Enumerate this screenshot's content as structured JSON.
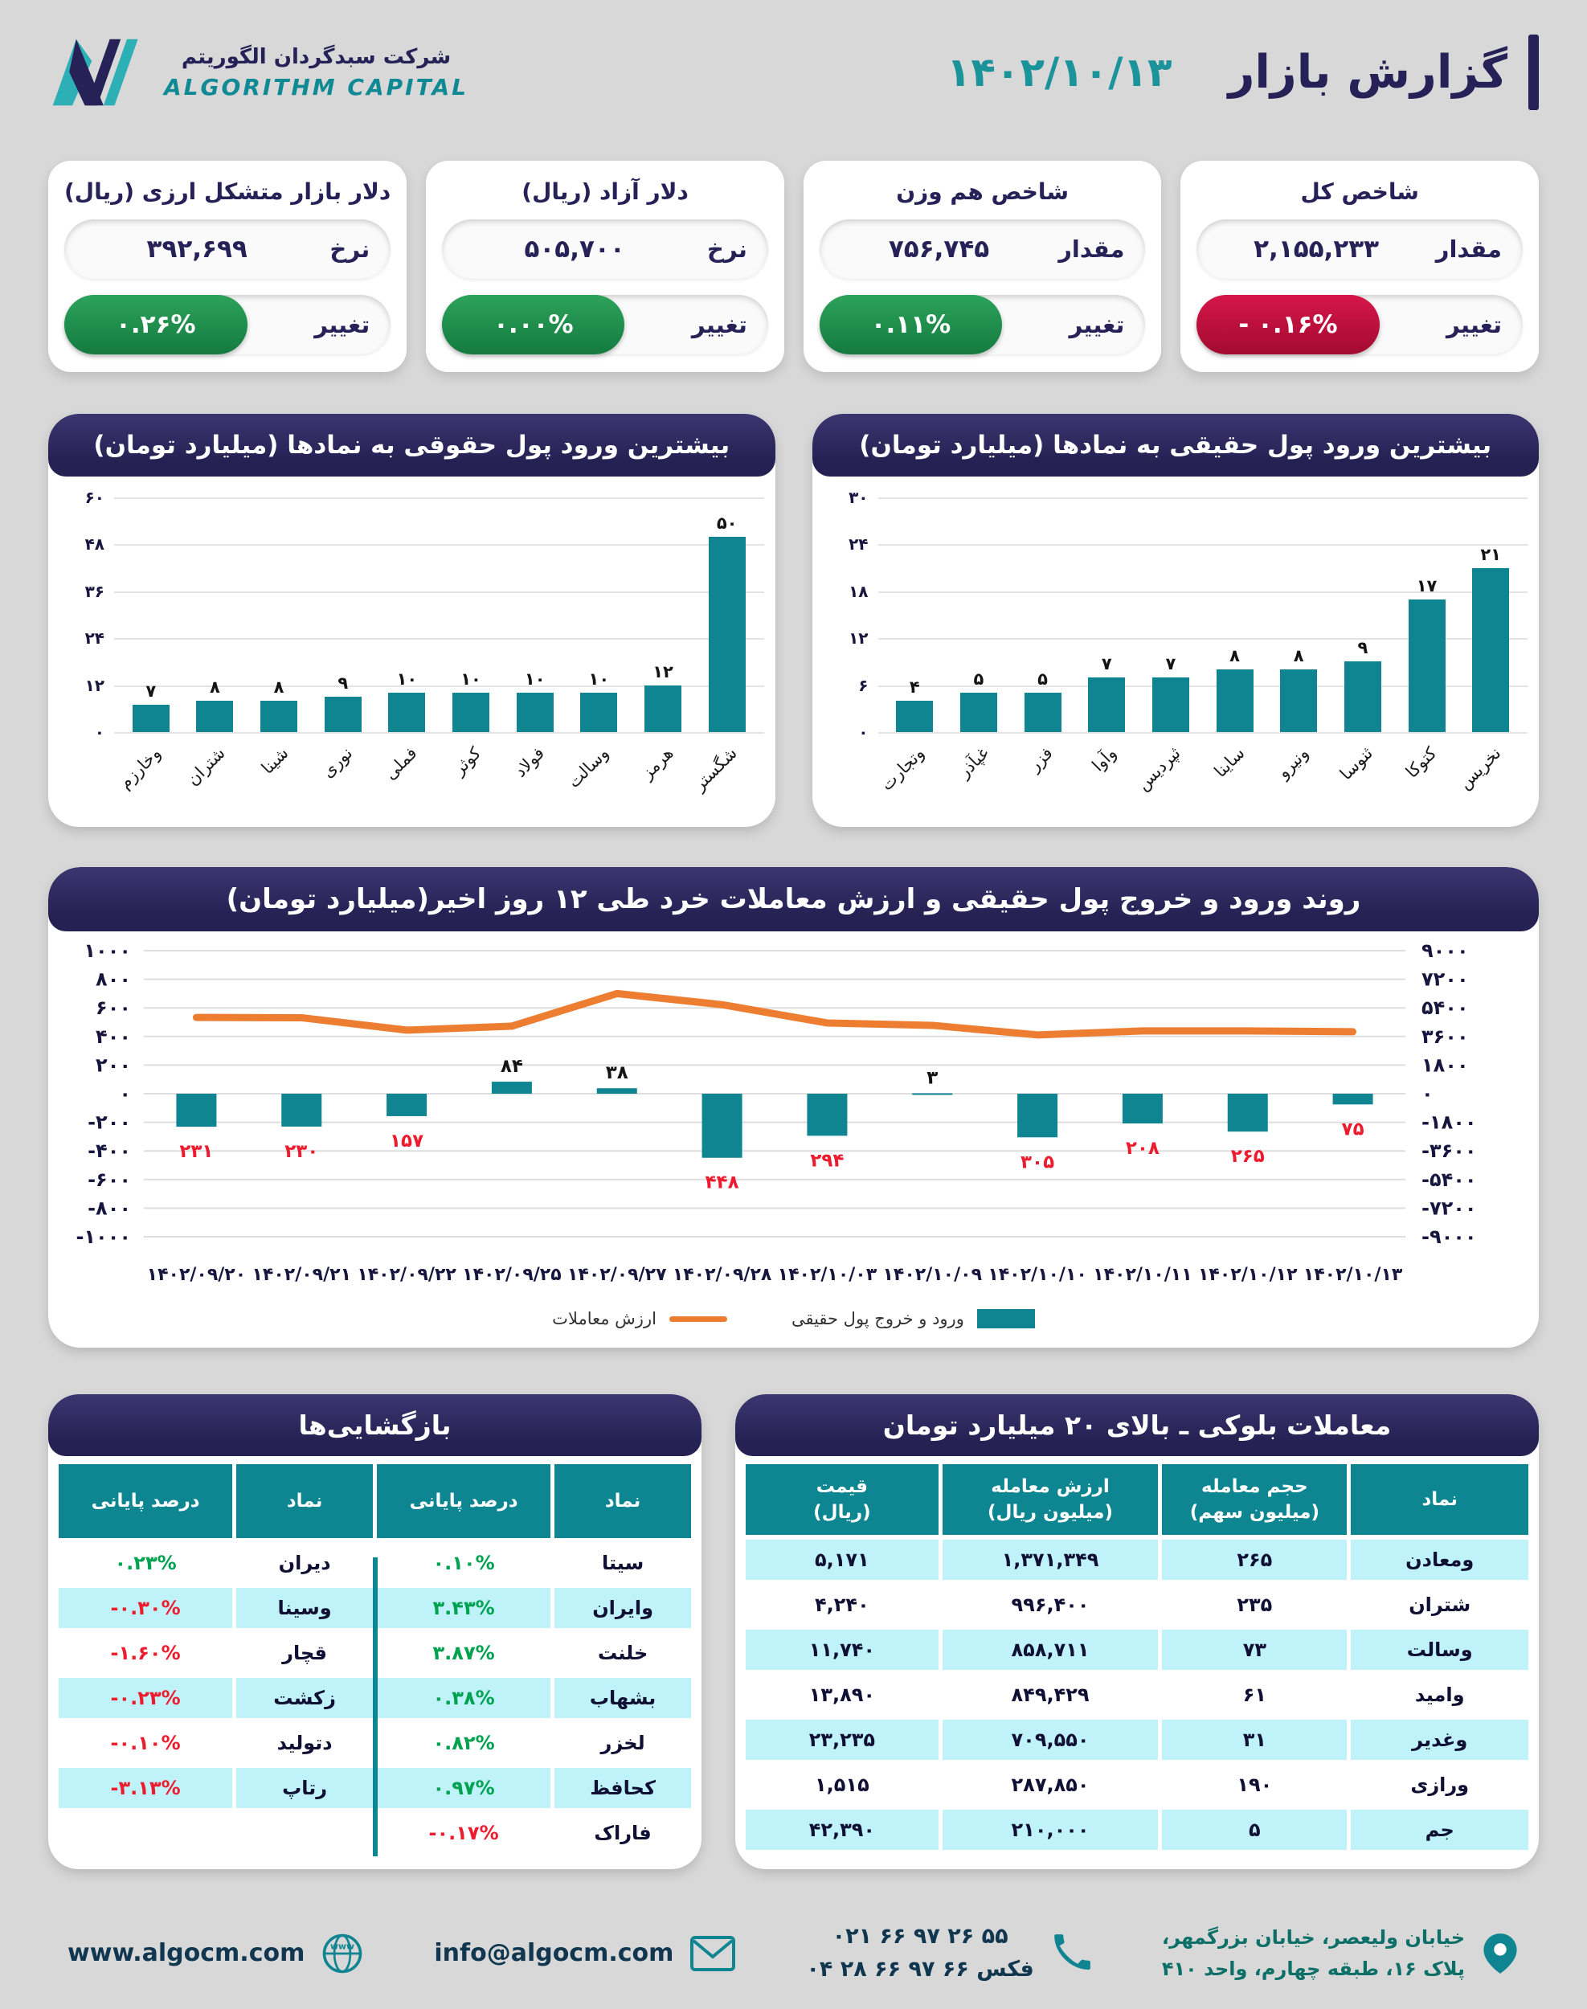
{
  "header": {
    "title": "گزارش بازار",
    "date": "۱۴۰۲/۱۰/۱۳",
    "logo_fa": "شرکت سبدگردان الگوریتم",
    "logo_en": "ALGORITHM CAPITAL"
  },
  "colors": {
    "navy": "#262156",
    "teal": "#0e8591",
    "green": "#1e8f4a",
    "red": "#c01038",
    "orange": "#ed7d31",
    "row_cyan": "#bff3f9",
    "neg_text": "#ec1c2e",
    "pos_text": "#00a14f"
  },
  "stat_cards": [
    {
      "title": "شاخص کل",
      "value_label": "مقدار",
      "value": "۲,۱۵۵,۲۳۳",
      "change_label": "تغییر",
      "change": "- ۰.۱۶%",
      "direction": "down"
    },
    {
      "title": "شاخص هم وزن",
      "value_label": "مقدار",
      "value": "۷۵۶,۷۴۵",
      "change_label": "تغییر",
      "change": "۰.۱۱%",
      "direction": "up"
    },
    {
      "title": "دلار آزاد (ریال)",
      "value_label": "نرخ",
      "value": "۵۰۵,۷۰۰",
      "change_label": "تغییر",
      "change": "۰.۰۰%",
      "direction": "up"
    },
    {
      "title": "دلار بازار متشکل ارزی (ریال)",
      "value_label": "نرخ",
      "value": "۳۹۲,۶۹۹",
      "change_label": "تغییر",
      "change": "۰.۲۶%",
      "direction": "up"
    }
  ],
  "chart_data": [
    {
      "type": "bar",
      "title": "بیشترین ورود پول حقیقی به نمادها (میلیارد تومان)",
      "categories": [
        "نخریس",
        "کتوکا",
        "ثنوسا",
        "ونیرو",
        "ساینا",
        "ثپردیس",
        "وآوا",
        "فزر",
        "غپآذر",
        "وتجارت"
      ],
      "values": [
        21,
        17,
        9,
        8,
        8,
        7,
        7,
        5,
        5,
        4
      ],
      "value_labels": [
        "۲۱",
        "۱۷",
        "۹",
        "۸",
        "۸",
        "۷",
        "۷",
        "۵",
        "۵",
        "۴"
      ],
      "ymax": 30,
      "yticks": [
        "۰",
        "۶",
        "۱۲",
        "۱۸",
        "۲۴",
        "۳۰"
      ],
      "bar_color": "#0e8591",
      "grid": true,
      "rtl": true
    },
    {
      "type": "bar",
      "title": "بیشترین ورود پول حقوقی به نمادها (میلیارد تومان)",
      "categories": [
        "شگستر",
        "هرمز",
        "وسالت",
        "فولاد",
        "کوثر",
        "فملی",
        "نوری",
        "شینا",
        "شتران",
        "وخارزم"
      ],
      "values": [
        50,
        12,
        10,
        10,
        10,
        10,
        9,
        8,
        8,
        7
      ],
      "value_labels": [
        "۵۰",
        "۱۲",
        "۱۰",
        "۱۰",
        "۱۰",
        "۱۰",
        "۹",
        "۸",
        "۸",
        "۷"
      ],
      "ymax": 60,
      "yticks": [
        "۰",
        "۱۲",
        "۲۴",
        "۳۶",
        "۴۸",
        "۶۰"
      ],
      "bar_color": "#0e8591",
      "grid": true,
      "rtl": true
    },
    {
      "type": "combo",
      "title": "روند ورود و خروج پول حقیقی و ارزش معاملات خرد طی ۱۲ روز اخیر(میلیارد تومان)",
      "x": [
        "۱۴۰۲/۰۹/۲۰",
        "۱۴۰۲/۰۹/۲۱",
        "۱۴۰۲/۰۹/۲۲",
        "۱۴۰۲/۰۹/۲۵",
        "۱۴۰۲/۰۹/۲۷",
        "۱۴۰۲/۰۹/۲۸",
        "۱۴۰۲/۱۰/۰۳",
        "۱۴۰۲/۱۰/۰۹",
        "۱۴۰۲/۱۰/۱۰",
        "۱۴۰۲/۱۰/۱۱",
        "۱۴۰۲/۱۰/۱۲",
        "۱۴۰۲/۱۰/۱۳"
      ],
      "series": [
        {
          "name": "ورود و خروج پول حقیقی",
          "type": "bar",
          "axis": "left",
          "values": [
            -231,
            -230,
            -157,
            84,
            38,
            -448,
            -294,
            3,
            -305,
            -208,
            -265,
            -75
          ],
          "value_labels": [
            "۲۳۱",
            "۲۳۰",
            "۱۵۷",
            "۸۴",
            "۳۸",
            "۴۴۸",
            "۲۹۴",
            "۳",
            "۳۰۵",
            "۲۰۸",
            "۲۶۵",
            "۷۵"
          ]
        },
        {
          "name": "ارزش معاملات",
          "type": "line",
          "axis": "right",
          "values": [
            4800,
            4780,
            4000,
            4250,
            6300,
            5600,
            4450,
            4300,
            3700,
            3950,
            3950,
            3900
          ]
        }
      ],
      "left_ylim": [
        -1000,
        1000
      ],
      "right_ylim": [
        -9000,
        9000
      ],
      "left_ticks": [
        "۱۰۰۰",
        "۸۰۰",
        "۶۰۰",
        "۴۰۰",
        "۲۰۰",
        "۰",
        "-۲۰۰",
        "-۴۰۰",
        "-۶۰۰",
        "-۸۰۰",
        "-۱۰۰۰"
      ],
      "right_ticks": [
        "۹۰۰۰",
        "۷۲۰۰",
        "۵۴۰۰",
        "۳۶۰۰",
        "۱۸۰۰",
        "۰",
        "-۱۸۰۰",
        "-۳۶۰۰",
        "-۵۴۰۰",
        "-۷۲۰۰",
        "-۹۰۰۰"
      ],
      "legend_position": "bottom",
      "grid": true
    }
  ],
  "block_trades": {
    "title": "معاملات بلوکی ـ بالای ۲۰ میلیارد تومان",
    "headers": [
      {
        "l1": "نماد",
        "l2": ""
      },
      {
        "l1": "حجم معامله",
        "l2": "(میلیون سهم)"
      },
      {
        "l1": "ارزش معامله",
        "l2": "(میلیون ریال)"
      },
      {
        "l1": "قیمت",
        "l2": "(ریال)"
      }
    ],
    "rows": [
      [
        "ومعادن",
        "۲۶۵",
        "۱,۳۷۱,۳۴۹",
        "۵,۱۷۱"
      ],
      [
        "شتران",
        "۲۳۵",
        "۹۹۶,۴۰۰",
        "۴,۲۴۰"
      ],
      [
        "وسالت",
        "۷۳",
        "۸۵۸,۷۱۱",
        "۱۱,۷۴۰"
      ],
      [
        "وامید",
        "۶۱",
        "۸۴۹,۴۲۹",
        "۱۳,۸۹۰"
      ],
      [
        "وغدیر",
        "۳۱",
        "۷۰۹,۵۵۰",
        "۲۳,۲۳۵"
      ],
      [
        "ورازی",
        "۱۹۰",
        "۲۸۷,۸۵۰",
        "۱,۵۱۵"
      ],
      [
        "جم",
        "۵",
        "۲۱۰,۰۰۰",
        "۴۲,۳۹۰"
      ]
    ]
  },
  "reopenings": {
    "title": "بازگشایی‌ها",
    "col_symbol": "نماد",
    "col_pct": "درصد پایانی",
    "rows": [
      [
        "سیتا",
        "۰.۱۰%",
        "دیران",
        "۰.۲۳%"
      ],
      [
        "وایران",
        "۳.۴۳%",
        "وسینا",
        "-۰.۳۰%"
      ],
      [
        "خلنت",
        "۳.۸۷%",
        "قچار",
        "-۱.۶۰%"
      ],
      [
        "بشهاب",
        "۰.۳۸%",
        "زکشت",
        "-۰.۲۳%"
      ],
      [
        "لخزر",
        "۰.۸۲%",
        "دتولید",
        "-۰.۱۰%"
      ],
      [
        "کحافظ",
        "۰.۹۷%",
        "رتاپ",
        "-۳.۱۳%"
      ],
      [
        "فاراک",
        "-۰.۱۷%",
        "",
        ""
      ]
    ]
  },
  "footer": {
    "website": "www.algocm.com",
    "email": "info@algocm.com",
    "phone1": "۰۲۱ ۶۶ ۹۷ ۲۶ ۵۵",
    "phone2": "۰۴ ۲۸ ۶۶ ۹۷ ۶۶ فکس",
    "address1": "خیابان ولیعصر، خیابان بزرگمهر،",
    "address2": "پلاک ۱۶، طبقه چهارم، واحد ۴۱۰"
  }
}
